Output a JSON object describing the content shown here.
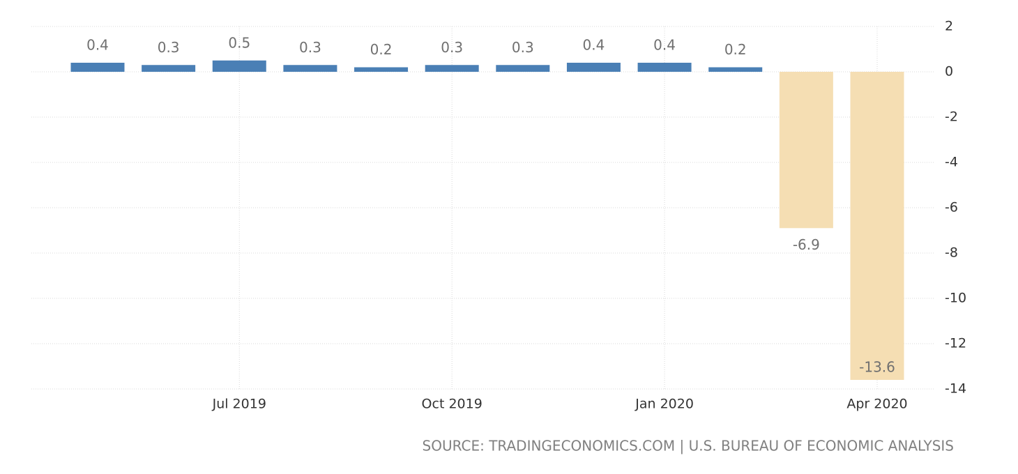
{
  "chart_data": {
    "type": "bar",
    "categories": [
      null,
      null,
      "Jul 2019",
      null,
      null,
      "Oct 2019",
      null,
      null,
      "Jan 2020",
      null,
      null,
      "Apr 2020"
    ],
    "values": [
      0.4,
      0.3,
      0.5,
      0.3,
      0.2,
      0.3,
      0.3,
      0.4,
      0.4,
      0.2,
      -6.9,
      -13.6
    ],
    "colors": [
      "#4a7fb5",
      "#4a7fb5",
      "#4a7fb5",
      "#4a7fb5",
      "#4a7fb5",
      "#4a7fb5",
      "#4a7fb5",
      "#4a7fb5",
      "#4a7fb5",
      "#4a7fb5",
      "#f5deb3",
      "#f5deb3"
    ],
    "ylim": [
      -14,
      2
    ],
    "yticks": [
      2,
      0,
      -2,
      -4,
      -6,
      -8,
      -10,
      -12,
      -14
    ],
    "grid": true,
    "source": "SOURCE: TRADINGECONOMICS.COM | U.S. BUREAU OF ECONOMIC ANALYSIS"
  }
}
